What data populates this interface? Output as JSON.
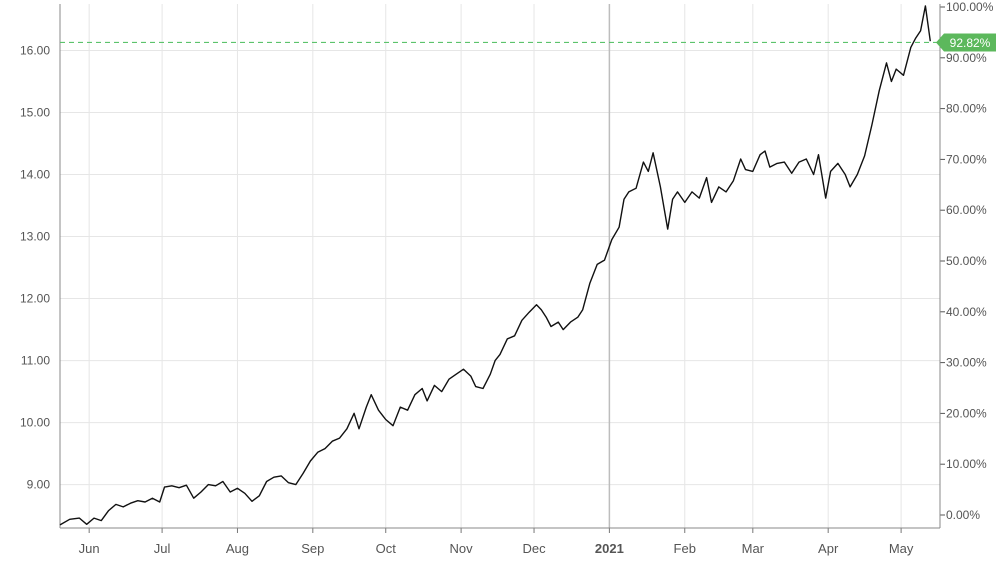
{
  "chart_data": {
    "type": "line",
    "title": "",
    "xlabel": "",
    "ylabel": "",
    "ylim": [
      8.3,
      16.75
    ],
    "y2lim": [
      0.0,
      100.0
    ],
    "grid": true,
    "legend": "none",
    "left_axis_ticks": [
      "9.00",
      "10.00",
      "11.00",
      "12.00",
      "13.00",
      "14.00",
      "15.00",
      "16.00"
    ],
    "left_axis_values": [
      9,
      10,
      11,
      12,
      13,
      14,
      15,
      16
    ],
    "right_axis_ticks": [
      "0.00%",
      "10.00%",
      "20.00%",
      "30.00%",
      "40.00%",
      "50.00%",
      "60.00%",
      "70.00%",
      "80.00%",
      "90.00%",
      "100.00%"
    ],
    "right_axis_values": [
      0,
      10,
      20,
      30,
      40,
      50,
      60,
      70,
      80,
      90,
      100
    ],
    "x_ticks": [
      {
        "label": "Jun",
        "date": "2020-06-01"
      },
      {
        "label": "Jul",
        "date": "2020-07-01"
      },
      {
        "label": "Aug",
        "date": "2020-08-01"
      },
      {
        "label": "Sep",
        "date": "2020-09-01"
      },
      {
        "label": "Oct",
        "date": "2020-10-01"
      },
      {
        "label": "Nov",
        "date": "2020-11-01"
      },
      {
        "label": "Dec",
        "date": "2020-12-01"
      },
      {
        "label": "2021",
        "date": "2021-01-01",
        "emphasis": true
      },
      {
        "label": "Feb",
        "date": "2021-02-01"
      },
      {
        "label": "Mar",
        "date": "2021-03-01"
      },
      {
        "label": "Apr",
        "date": "2021-04-01"
      },
      {
        "label": "May",
        "date": "2021-05-01"
      }
    ],
    "reference_line": {
      "value": 16.13,
      "label": "92.82%"
    },
    "series": [
      {
        "color": "#111111",
        "points": [
          [
            "2020-05-20",
            8.35
          ],
          [
            "2020-05-24",
            8.44
          ],
          [
            "2020-05-28",
            8.46
          ],
          [
            "2020-05-31",
            8.36
          ],
          [
            "2020-06-03",
            8.46
          ],
          [
            "2020-06-06",
            8.42
          ],
          [
            "2020-06-09",
            8.58
          ],
          [
            "2020-06-12",
            8.68
          ],
          [
            "2020-06-15",
            8.64
          ],
          [
            "2020-06-18",
            8.7
          ],
          [
            "2020-06-21",
            8.74
          ],
          [
            "2020-06-24",
            8.72
          ],
          [
            "2020-06-27",
            8.78
          ],
          [
            "2020-06-30",
            8.72
          ],
          [
            "2020-07-02",
            8.96
          ],
          [
            "2020-07-05",
            8.98
          ],
          [
            "2020-07-08",
            8.95
          ],
          [
            "2020-07-11",
            8.99
          ],
          [
            "2020-07-14",
            8.78
          ],
          [
            "2020-07-17",
            8.88
          ],
          [
            "2020-07-20",
            9.0
          ],
          [
            "2020-07-23",
            8.98
          ],
          [
            "2020-07-26",
            9.05
          ],
          [
            "2020-07-29",
            8.88
          ],
          [
            "2020-08-01",
            8.94
          ],
          [
            "2020-08-04",
            8.86
          ],
          [
            "2020-08-07",
            8.73
          ],
          [
            "2020-08-10",
            8.82
          ],
          [
            "2020-08-13",
            9.05
          ],
          [
            "2020-08-16",
            9.12
          ],
          [
            "2020-08-19",
            9.14
          ],
          [
            "2020-08-22",
            9.03
          ],
          [
            "2020-08-25",
            9.0
          ],
          [
            "2020-08-28",
            9.18
          ],
          [
            "2020-08-31",
            9.38
          ],
          [
            "2020-09-03",
            9.52
          ],
          [
            "2020-09-06",
            9.58
          ],
          [
            "2020-09-09",
            9.7
          ],
          [
            "2020-09-12",
            9.75
          ],
          [
            "2020-09-15",
            9.9
          ],
          [
            "2020-09-18",
            10.15
          ],
          [
            "2020-09-20",
            9.9
          ],
          [
            "2020-09-23",
            10.25
          ],
          [
            "2020-09-25",
            10.45
          ],
          [
            "2020-09-28",
            10.2
          ],
          [
            "2020-10-01",
            10.05
          ],
          [
            "2020-10-04",
            9.95
          ],
          [
            "2020-10-07",
            10.25
          ],
          [
            "2020-10-10",
            10.2
          ],
          [
            "2020-10-13",
            10.45
          ],
          [
            "2020-10-16",
            10.55
          ],
          [
            "2020-10-18",
            10.35
          ],
          [
            "2020-10-21",
            10.6
          ],
          [
            "2020-10-24",
            10.5
          ],
          [
            "2020-10-27",
            10.7
          ],
          [
            "2020-10-30",
            10.78
          ],
          [
            "2020-11-02",
            10.86
          ],
          [
            "2020-11-05",
            10.75
          ],
          [
            "2020-11-07",
            10.58
          ],
          [
            "2020-11-10",
            10.55
          ],
          [
            "2020-11-13",
            10.78
          ],
          [
            "2020-11-15",
            11.0
          ],
          [
            "2020-11-17",
            11.1
          ],
          [
            "2020-11-20",
            11.35
          ],
          [
            "2020-11-23",
            11.4
          ],
          [
            "2020-11-26",
            11.65
          ],
          [
            "2020-11-29",
            11.78
          ],
          [
            "2020-12-02",
            11.9
          ],
          [
            "2020-12-04",
            11.82
          ],
          [
            "2020-12-06",
            11.7
          ],
          [
            "2020-12-08",
            11.55
          ],
          [
            "2020-12-11",
            11.62
          ],
          [
            "2020-12-13",
            11.5
          ],
          [
            "2020-12-16",
            11.62
          ],
          [
            "2020-12-19",
            11.7
          ],
          [
            "2020-12-21",
            11.82
          ],
          [
            "2020-12-24",
            12.25
          ],
          [
            "2020-12-27",
            12.55
          ],
          [
            "2020-12-30",
            12.62
          ],
          [
            "2021-01-02",
            12.95
          ],
          [
            "2021-01-05",
            13.15
          ],
          [
            "2021-01-07",
            13.6
          ],
          [
            "2021-01-09",
            13.72
          ],
          [
            "2021-01-12",
            13.78
          ],
          [
            "2021-01-15",
            14.2
          ],
          [
            "2021-01-17",
            14.05
          ],
          [
            "2021-01-19",
            14.35
          ],
          [
            "2021-01-22",
            13.8
          ],
          [
            "2021-01-25",
            13.12
          ],
          [
            "2021-01-27",
            13.6
          ],
          [
            "2021-01-29",
            13.72
          ],
          [
            "2021-02-01",
            13.55
          ],
          [
            "2021-02-04",
            13.72
          ],
          [
            "2021-02-07",
            13.62
          ],
          [
            "2021-02-10",
            13.95
          ],
          [
            "2021-02-12",
            13.55
          ],
          [
            "2021-02-15",
            13.8
          ],
          [
            "2021-02-18",
            13.72
          ],
          [
            "2021-02-21",
            13.9
          ],
          [
            "2021-02-24",
            14.25
          ],
          [
            "2021-02-26",
            14.08
          ],
          [
            "2021-03-01",
            14.05
          ],
          [
            "2021-03-04",
            14.32
          ],
          [
            "2021-03-06",
            14.38
          ],
          [
            "2021-03-08",
            14.12
          ],
          [
            "2021-03-11",
            14.18
          ],
          [
            "2021-03-14",
            14.2
          ],
          [
            "2021-03-17",
            14.02
          ],
          [
            "2021-03-20",
            14.2
          ],
          [
            "2021-03-23",
            14.25
          ],
          [
            "2021-03-26",
            14.0
          ],
          [
            "2021-03-28",
            14.32
          ],
          [
            "2021-03-31",
            13.62
          ],
          [
            "2021-04-02",
            14.05
          ],
          [
            "2021-04-05",
            14.18
          ],
          [
            "2021-04-08",
            14.0
          ],
          [
            "2021-04-10",
            13.8
          ],
          [
            "2021-04-13",
            14.0
          ],
          [
            "2021-04-16",
            14.3
          ],
          [
            "2021-04-19",
            14.8
          ],
          [
            "2021-04-22",
            15.35
          ],
          [
            "2021-04-25",
            15.8
          ],
          [
            "2021-04-27",
            15.5
          ],
          [
            "2021-04-29",
            15.7
          ],
          [
            "2021-05-02",
            15.6
          ],
          [
            "2021-05-05",
            16.05
          ],
          [
            "2021-05-07",
            16.2
          ],
          [
            "2021-05-09",
            16.32
          ],
          [
            "2021-05-11",
            16.72
          ],
          [
            "2021-05-13",
            16.15
          ]
        ]
      }
    ]
  }
}
